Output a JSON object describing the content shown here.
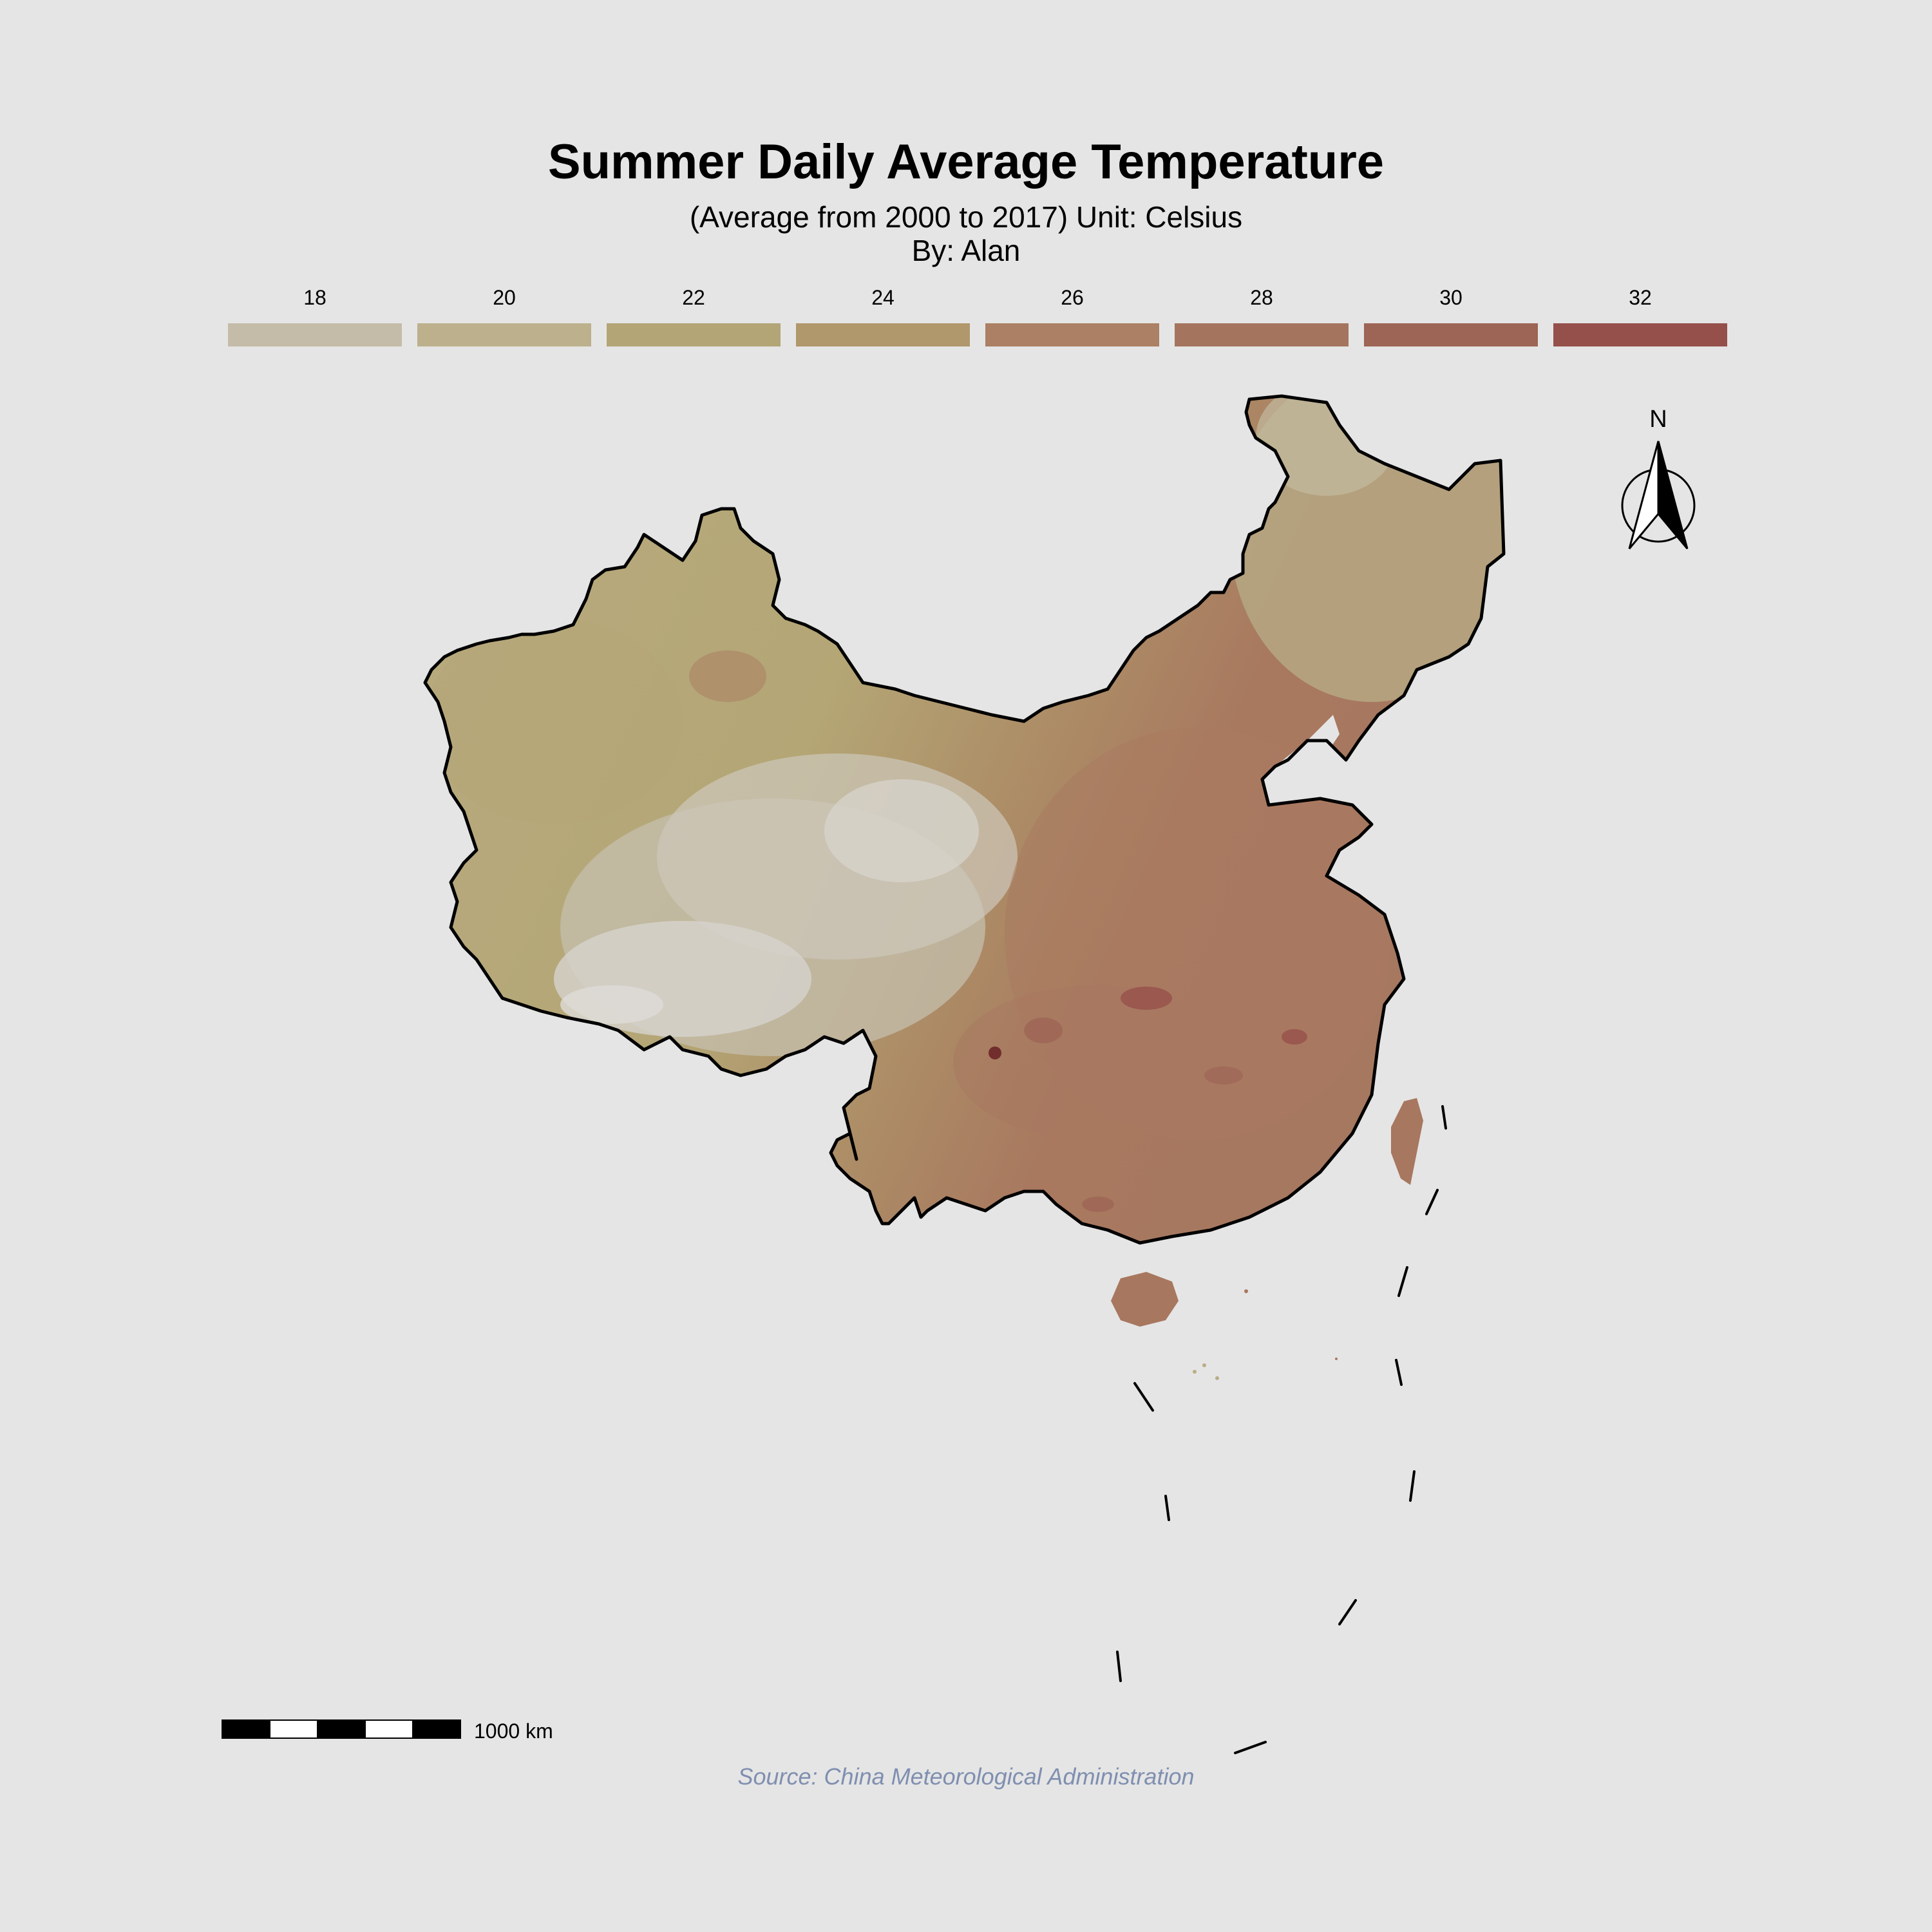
{
  "title": "Summer Daily Average Temperature",
  "subtitle_line1": "(Average from 2000 to 2017) Unit: Celsius",
  "subtitle_line2": "By: Alan",
  "legend": [
    {
      "label": "18",
      "color": "#c4bca8"
    },
    {
      "label": "20",
      "color": "#bcb18c"
    },
    {
      "label": "22",
      "color": "#b3a576"
    },
    {
      "label": "24",
      "color": "#b0976c"
    },
    {
      "label": "26",
      "color": "#ab8064"
    },
    {
      "label": "28",
      "color": "#a5745f"
    },
    {
      "label": "30",
      "color": "#9d6555"
    },
    {
      "label": "32",
      "color": "#96504b"
    }
  ],
  "north_arrow": {
    "label": "N"
  },
  "scale_bar": {
    "label": "1000 km"
  },
  "source": "Source: China Meteorological Administration",
  "colors": {
    "background": "#e5e5e5",
    "border": "#000000",
    "cold_plateau": "#d4d1ca",
    "warm_east": "#a8775f",
    "hot_spots": "#8e4a48",
    "source_text": "#7f8fb0"
  }
}
